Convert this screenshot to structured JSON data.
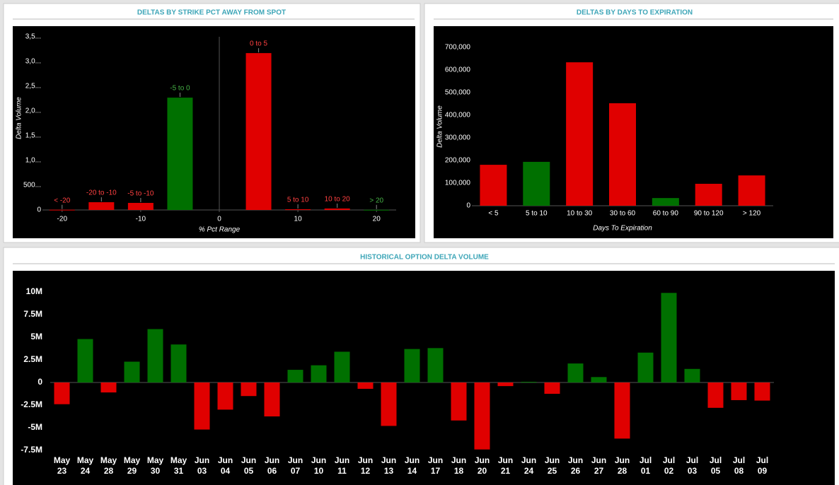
{
  "chart_data": [
    {
      "type": "bar",
      "title": "DELTAS BY STRIKE PCT AWAY FROM SPOT",
      "x_label": "% Pct Range",
      "y_label": "Delta Volume",
      "x": [
        -20,
        -15,
        -10,
        -5,
        5,
        10,
        15,
        20
      ],
      "values": [
        5,
        157,
        143,
        2270,
        3170,
        15,
        30,
        3
      ],
      "labels": [
        "< -20",
        "-20 to -10",
        "-5 to -10",
        "-5 to 0",
        "0 to 5",
        "5 to 10",
        "10 to 20",
        "> 20"
      ],
      "colors": [
        "#e00000",
        "#e00000",
        "#e00000",
        "#007000",
        "#e00000",
        "#e00000",
        "#e00000",
        "#007000"
      ],
      "label_colors": [
        "#ff4040",
        "#ff4040",
        "#ff4040",
        "#45b045",
        "#ff4040",
        "#ff4040",
        "#ff4040",
        "#45b045"
      ],
      "xlim": [
        -22.5,
        22.5
      ],
      "xticks": [
        -20,
        -10,
        0,
        10,
        20
      ],
      "ylim": [
        0,
        3500
      ],
      "yticks": [
        0,
        {
          "value": 500,
          "label": "500..."
        },
        {
          "value": 1000,
          "label": "1,0..."
        },
        {
          "value": 1500,
          "label": "1,5..."
        },
        {
          "value": 2000,
          "label": "2,0..."
        },
        {
          "value": 2500,
          "label": "2,5..."
        },
        {
          "value": 3000,
          "label": "3,0..."
        },
        {
          "value": 3500,
          "label": "3,5..."
        }
      ]
    },
    {
      "type": "bar",
      "title": "DELTAS BY DAYS TO EXPIRATION",
      "x_label": "Days To Expiration",
      "y_label": "Delta Volume",
      "categories": [
        "< 5",
        "5 to 10",
        "10 to 30",
        "30 to 60",
        "60 to 90",
        "90 to 120",
        "> 120"
      ],
      "values": [
        181000,
        194000,
        634000,
        453000,
        34000,
        97000,
        134000
      ],
      "colors": [
        "#e00000",
        "#007000",
        "#e00000",
        "#e00000",
        "#007000",
        "#e00000",
        "#e00000"
      ],
      "ylim": [
        0,
        700000
      ],
      "yticks": [
        0,
        {
          "value": 100000,
          "label": "100,000"
        },
        {
          "value": 200000,
          "label": "200,000"
        },
        {
          "value": 300000,
          "label": "300,000"
        },
        {
          "value": 400000,
          "label": "400,000"
        },
        {
          "value": 500000,
          "label": "500,000"
        },
        {
          "value": 600000,
          "label": "600,000"
        },
        {
          "value": 700000,
          "label": "700,000"
        }
      ]
    },
    {
      "type": "bar",
      "title": "HISTORICAL OPTION DELTA VOLUME",
      "categories": [
        [
          "May",
          "23"
        ],
        [
          "May",
          "24"
        ],
        [
          "May",
          "28"
        ],
        [
          "May",
          "29"
        ],
        [
          "May",
          "30"
        ],
        [
          "May",
          "31"
        ],
        [
          "Jun",
          "03"
        ],
        [
          "Jun",
          "04"
        ],
        [
          "Jun",
          "05"
        ],
        [
          "Jun",
          "06"
        ],
        [
          "Jun",
          "07"
        ],
        [
          "Jun",
          "10"
        ],
        [
          "Jun",
          "11"
        ],
        [
          "Jun",
          "12"
        ],
        [
          "Jun",
          "13"
        ],
        [
          "Jun",
          "14"
        ],
        [
          "Jun",
          "17"
        ],
        [
          "Jun",
          "18"
        ],
        [
          "Jun",
          "20"
        ],
        [
          "Jun",
          "21"
        ],
        [
          "Jun",
          "24"
        ],
        [
          "Jun",
          "25"
        ],
        [
          "Jun",
          "26"
        ],
        [
          "Jun",
          "27"
        ],
        [
          "Jun",
          "28"
        ],
        [
          "Jul",
          "01"
        ],
        [
          "Jul",
          "02"
        ],
        [
          "Jul",
          "03"
        ],
        [
          "Jul",
          "05"
        ],
        [
          "Jul",
          "08"
        ],
        [
          "Jul",
          "09"
        ]
      ],
      "values": [
        -2400000,
        4800000,
        -1100000,
        2300000,
        5900000,
        4200000,
        -5200000,
        -3000000,
        -1500000,
        -3750000,
        1400000,
        1900000,
        3400000,
        -700000,
        -4800000,
        3700000,
        3800000,
        -4200000,
        -7400000,
        -400000,
        80000,
        -1250000,
        2100000,
        600000,
        -6200000,
        3300000,
        9900000,
        1500000,
        -2800000,
        -1950000,
        -2000000
      ],
      "positive_color": "#007000",
      "negative_color": "#e00000",
      "ylim": [
        -7500000,
        10000000
      ],
      "yticks": [
        {
          "value": -7500000,
          "label": "-7.5M"
        },
        {
          "value": -5000000,
          "label": "-5M"
        },
        {
          "value": -2500000,
          "label": "-2.5M"
        },
        0,
        {
          "value": 2500000,
          "label": "2.5M"
        },
        {
          "value": 5000000,
          "label": "5M"
        },
        {
          "value": 7500000,
          "label": "7.5M"
        },
        {
          "value": 10000000,
          "label": "10M"
        }
      ]
    }
  ]
}
